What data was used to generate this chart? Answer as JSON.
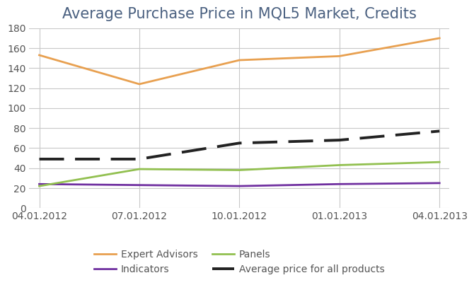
{
  "title": "Average Purchase Price in MQL5 Market, Credits",
  "x_labels": [
    "04.01.2012",
    "07.01.2012",
    "10.01.2012",
    "01.01.2013",
    "04.01.2013"
  ],
  "x_positions": [
    0,
    1,
    2,
    3,
    4
  ],
  "series": {
    "Expert Advisors": {
      "values": [
        153,
        124,
        148,
        152,
        170
      ],
      "color": "#E8A050",
      "linewidth": 2.0,
      "dashes": null
    },
    "Indicators": {
      "values": [
        24,
        23,
        22,
        24,
        25
      ],
      "color": "#7030A0",
      "linewidth": 2.0,
      "dashes": null
    },
    "Panels": {
      "values": [
        22,
        39,
        38,
        43,
        46
      ],
      "color": "#92C050",
      "linewidth": 2.0,
      "dashes": null
    },
    "Average price for all products": {
      "values": [
        49,
        49,
        65,
        68,
        77
      ],
      "color": "#222222",
      "linewidth": 2.8,
      "dashes": [
        9,
        4
      ]
    }
  },
  "ylim": [
    0,
    180
  ],
  "yticks": [
    0,
    20,
    40,
    60,
    80,
    100,
    120,
    140,
    160,
    180
  ],
  "background_color": "#FFFFFF",
  "grid_color": "#C8C8C8",
  "legend_order": [
    "Expert Advisors",
    "Indicators",
    "Panels",
    "Average price for all products"
  ],
  "title_fontsize": 15,
  "tick_fontsize": 10,
  "legend_fontsize": 10,
  "title_color": "#4A6080"
}
